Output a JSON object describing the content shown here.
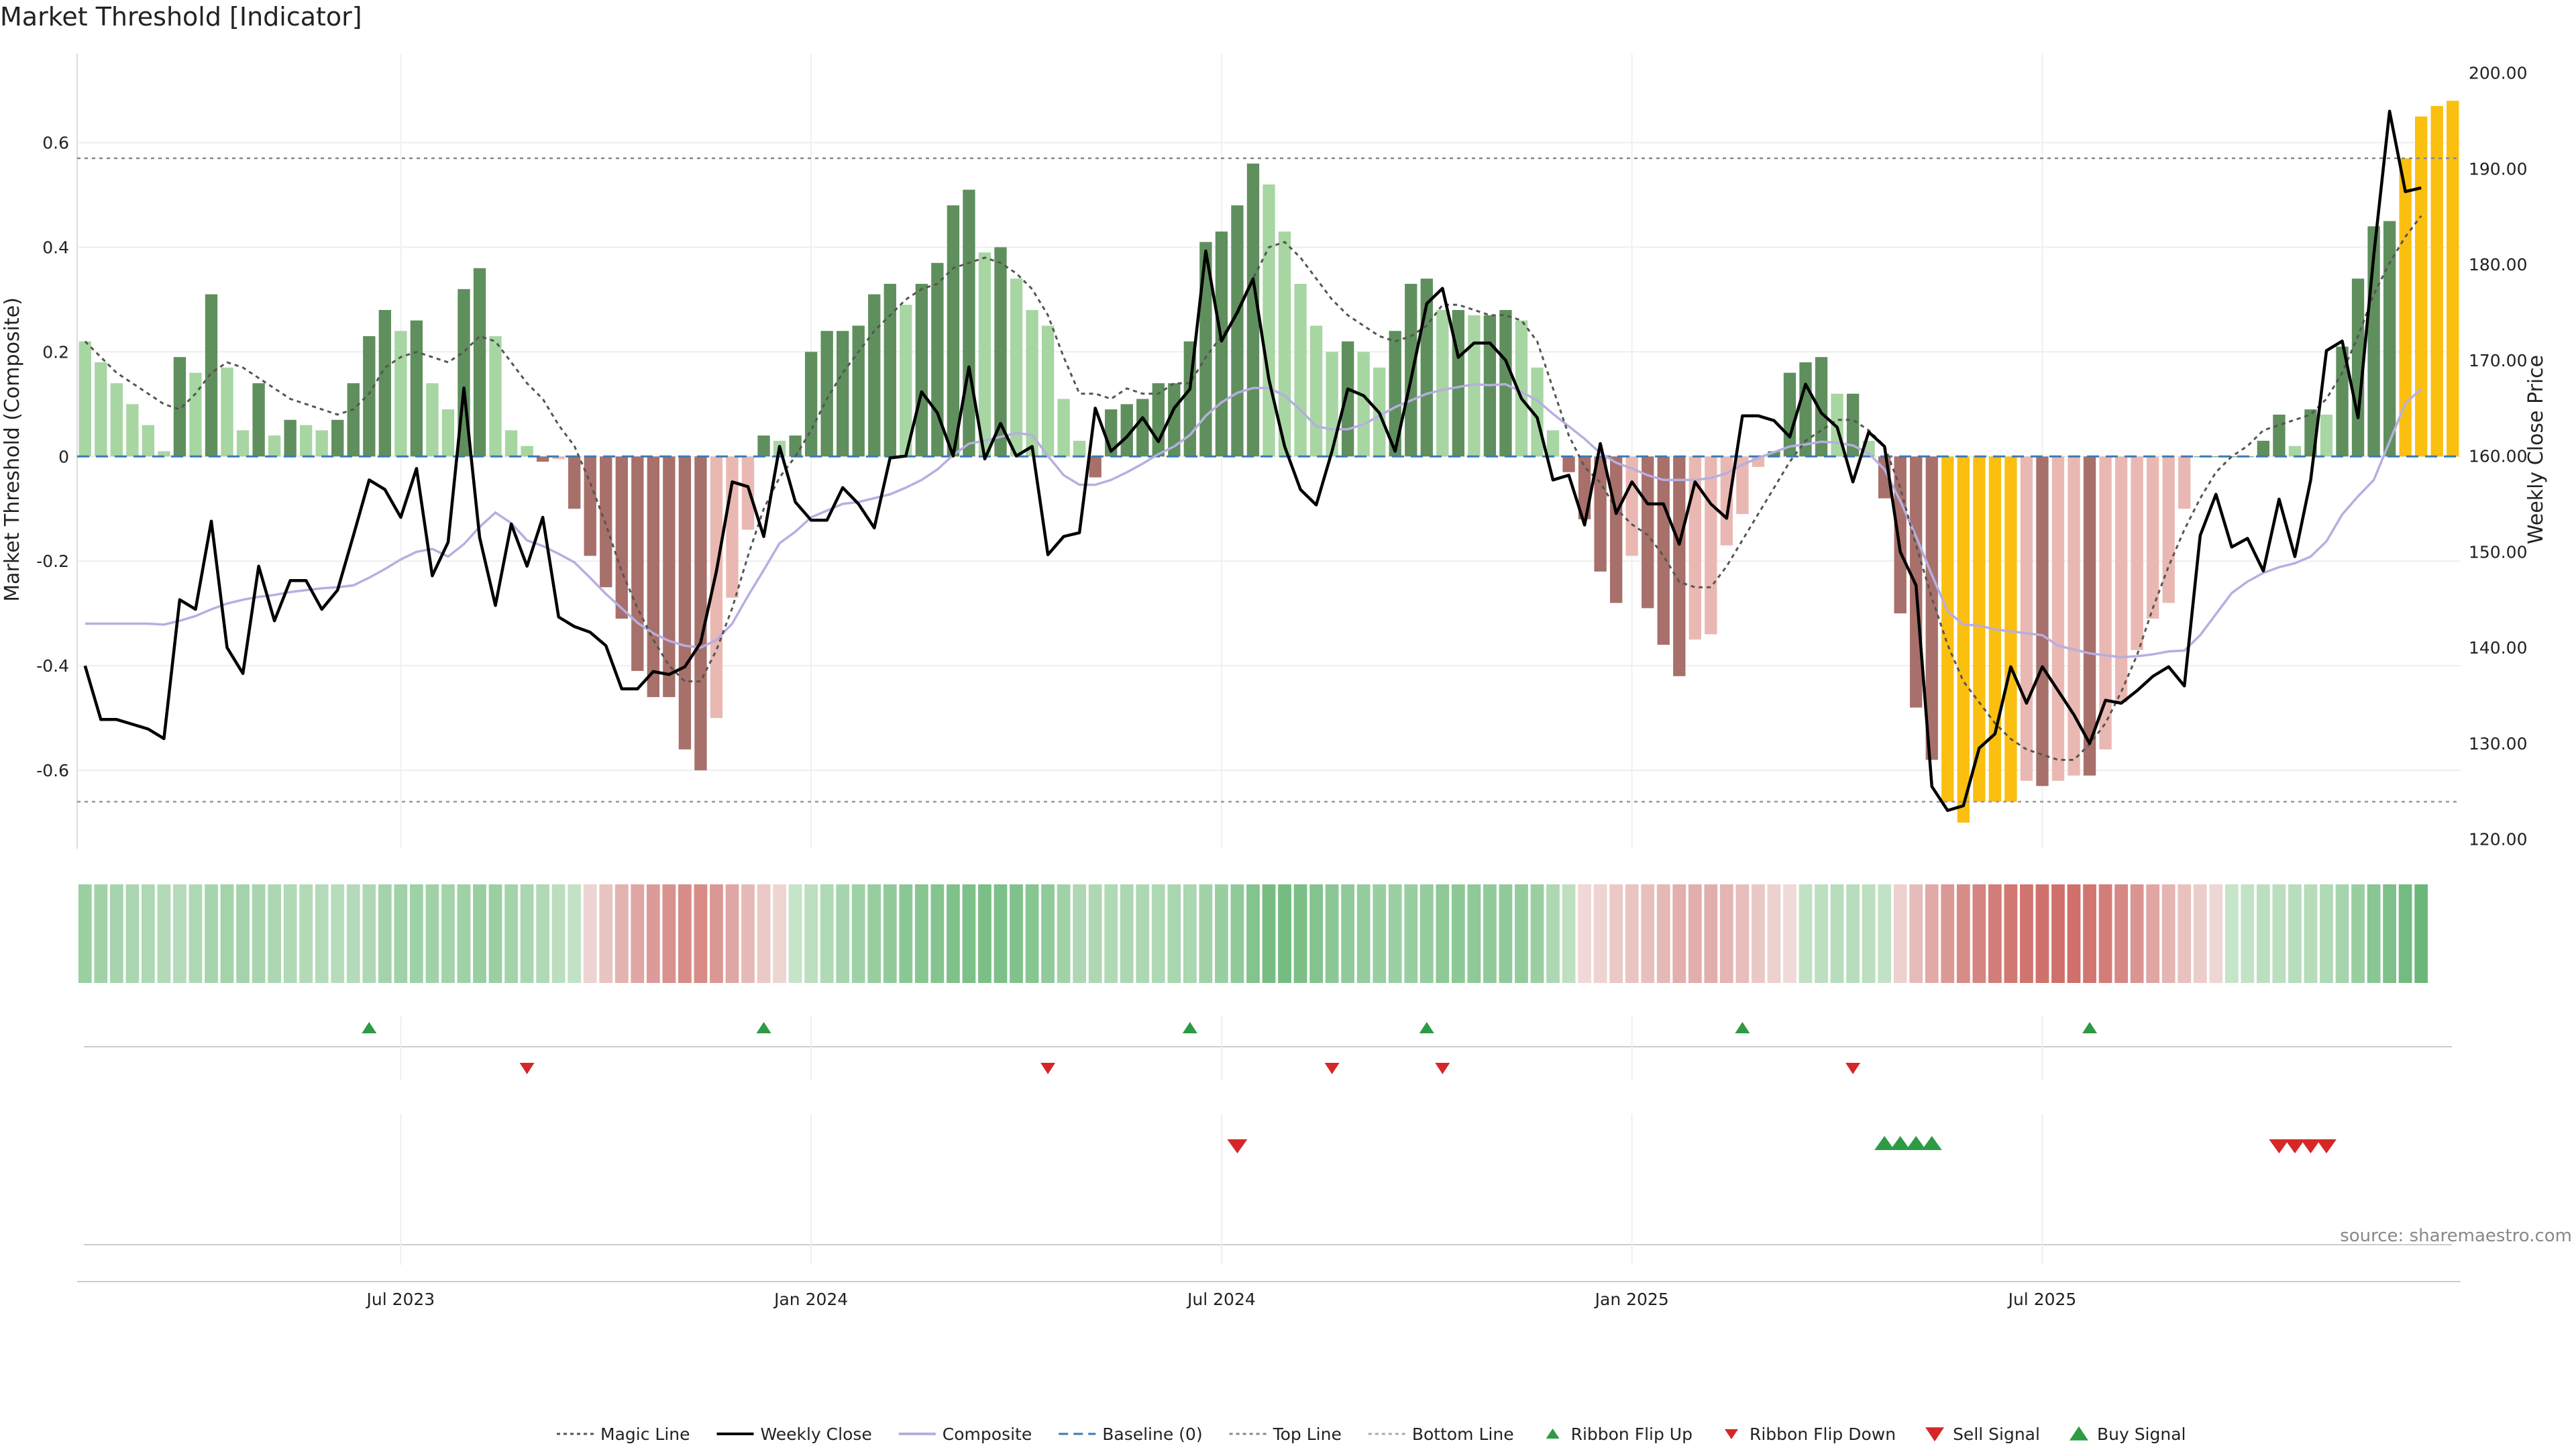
{
  "chart_data": {
    "type": "bar",
    "title": "Market Threshold [Indicator]",
    "ylabel_left": "Market Threshold (Composite)",
    "ylabel_right": "Weekly Close Price",
    "source": "source: sharemaestro.com",
    "ylim_left": [
      -0.75,
      0.77
    ],
    "ylim_right": [
      119,
      202
    ],
    "left_ticks": [
      "-0.6",
      "-0.4",
      "-0.2",
      "0",
      "0.2",
      "0.4",
      "0.6"
    ],
    "left_tick_values": [
      -0.6,
      -0.4,
      -0.2,
      0,
      0.2,
      0.4,
      0.6
    ],
    "right_ticks": [
      "120.00",
      "130.00",
      "140.00",
      "150.00",
      "160.00",
      "170.00",
      "180.00",
      "190.00",
      "200.00"
    ],
    "right_tick_values": [
      120,
      130,
      140,
      150,
      160,
      170,
      180,
      190,
      200
    ],
    "x_ticks": [
      "Jul 2023",
      "Jan 2024",
      "Jul 2024",
      "Jan 2025",
      "Jul 2025"
    ],
    "x_tick_weeks": [
      20,
      46,
      72,
      98,
      124
    ],
    "top_line": 0.57,
    "bottom_line": -0.66,
    "composite": [
      0.22,
      0.18,
      0.14,
      0.1,
      0.06,
      0.01,
      0.19,
      0.16,
      0.31,
      0.17,
      0.05,
      0.14,
      0.04,
      0.07,
      0.06,
      0.05,
      0.07,
      0.14,
      0.23,
      0.28,
      0.24,
      0.26,
      0.14,
      0.09,
      0.32,
      0.36,
      0.23,
      0.05,
      0.02,
      -0.01,
      -0.005,
      -0.1,
      -0.19,
      -0.25,
      -0.31,
      -0.41,
      -0.46,
      -0.46,
      -0.56,
      -0.6,
      -0.5,
      -0.27,
      -0.14,
      0.04,
      0.03,
      0.04,
      0.2,
      0.24,
      0.24,
      0.25,
      0.31,
      0.33,
      0.29,
      0.33,
      0.37,
      0.48,
      0.51,
      0.39,
      0.4,
      0.34,
      0.28,
      0.25,
      0.11,
      0.03,
      -0.04,
      0.09,
      0.1,
      0.11,
      0.14,
      0.14,
      0.22,
      0.41,
      0.43,
      0.48,
      0.56,
      0.52,
      0.43,
      0.33,
      0.25,
      0.2,
      0.22,
      0.2,
      0.17,
      0.24,
      0.33,
      0.34,
      0.28,
      0.28,
      0.27,
      0.27,
      0.28,
      0.26,
      0.17,
      0.05,
      -0.03,
      -0.12,
      -0.22,
      -0.28,
      -0.19,
      -0.29,
      -0.36,
      -0.42,
      -0.35,
      -0.34,
      -0.17,
      -0.11,
      -0.02,
      0.01,
      0.16,
      0.18,
      0.19,
      0.12,
      0.12,
      0.03,
      -0.08,
      -0.3,
      -0.48,
      -0.58,
      -0.66,
      -0.7,
      -0.66,
      -0.66,
      -0.66,
      -0.62,
      -0.63,
      -0.62,
      -0.61,
      -0.61,
      -0.56,
      -0.47,
      -0.37,
      -0.31,
      -0.28,
      -0.1,
      0.0,
      0.0,
      0.0,
      0.0,
      0.03,
      0.08,
      0.02,
      0.09,
      0.08,
      0.21,
      0.34,
      0.44,
      0.45,
      0.57,
      0.65,
      0.67,
      0.68
    ],
    "magic_line": [
      0.22,
      0.19,
      0.16,
      0.14,
      0.12,
      0.1,
      0.09,
      0.12,
      0.16,
      0.18,
      0.17,
      0.15,
      0.13,
      0.11,
      0.1,
      0.09,
      0.08,
      0.09,
      0.12,
      0.17,
      0.19,
      0.2,
      0.19,
      0.18,
      0.2,
      0.23,
      0.22,
      0.18,
      0.14,
      0.11,
      0.06,
      0.02,
      -0.05,
      -0.13,
      -0.22,
      -0.29,
      -0.35,
      -0.4,
      -0.43,
      -0.43,
      -0.37,
      -0.29,
      -0.19,
      -0.1,
      -0.04,
      0.0,
      0.05,
      0.11,
      0.16,
      0.2,
      0.24,
      0.27,
      0.3,
      0.32,
      0.33,
      0.36,
      0.37,
      0.38,
      0.37,
      0.35,
      0.32,
      0.27,
      0.19,
      0.12,
      0.12,
      0.11,
      0.13,
      0.12,
      0.12,
      0.14,
      0.14,
      0.19,
      0.23,
      0.27,
      0.34,
      0.4,
      0.41,
      0.38,
      0.34,
      0.3,
      0.27,
      0.25,
      0.23,
      0.22,
      0.23,
      0.25,
      0.29,
      0.29,
      0.28,
      0.27,
      0.27,
      0.26,
      0.22,
      0.13,
      0.04,
      -0.02,
      -0.05,
      -0.1,
      -0.13,
      -0.15,
      -0.19,
      -0.24,
      -0.25,
      -0.25,
      -0.21,
      -0.16,
      -0.11,
      -0.06,
      -0.01,
      0.03,
      0.05,
      0.07,
      0.07,
      0.05,
      0.02,
      -0.06,
      -0.17,
      -0.27,
      -0.36,
      -0.43,
      -0.47,
      -0.51,
      -0.54,
      -0.56,
      -0.57,
      -0.58,
      -0.58,
      -0.55,
      -0.51,
      -0.45,
      -0.38,
      -0.29,
      -0.21,
      -0.14,
      -0.08,
      -0.03,
      0.0,
      0.02,
      0.05,
      0.06,
      0.07,
      0.08,
      0.11,
      0.16,
      0.23,
      0.31,
      0.37,
      0.42,
      0.46
    ],
    "weekly_close": [
      138.1,
      132.5,
      132.5,
      132.0,
      131.5,
      130.5,
      145.0,
      144.0,
      153.2,
      140.0,
      137.3,
      148.5,
      142.8,
      147.0,
      147.0,
      144.0,
      146.0,
      151.7,
      157.5,
      156.5,
      153.6,
      158.7,
      147.5,
      151.0,
      167.1,
      151.5,
      144.4,
      152.9,
      148.5,
      153.6,
      143.2,
      142.2,
      141.6,
      140.2,
      135.7,
      135.7,
      137.5,
      137.2,
      138.0,
      140.5,
      148.0,
      157.3,
      156.8,
      151.6,
      161.0,
      155.2,
      153.3,
      153.3,
      156.7,
      155.0,
      152.5,
      159.8,
      160.0,
      166.7,
      164.5,
      160.0,
      169.3,
      159.7,
      163.4,
      160.0,
      161.0,
      149.7,
      151.6,
      152.0,
      165.0,
      160.5,
      162.0,
      164.0,
      161.5,
      165.0,
      167.0,
      181.4,
      172.0,
      175.0,
      178.5,
      168.0,
      161.0,
      156.5,
      154.9,
      160.5,
      167.0,
      166.3,
      164.5,
      160.5,
      168.0,
      175.9,
      177.5,
      170.3,
      171.8,
      171.8,
      170.0,
      166.0,
      164.0,
      157.5,
      158.0,
      152.8,
      161.3,
      154.0,
      157.3,
      155.0,
      155.0,
      150.8,
      157.3,
      155.0,
      153.5,
      164.2,
      164.2,
      163.7,
      162.0,
      167.5,
      164.5,
      163.0,
      157.3,
      162.5,
      161.0,
      150.0,
      146.5,
      125.5,
      123.0,
      123.5,
      129.5,
      131.0,
      138.0,
      134.2,
      138.0,
      135.5,
      133.0,
      130.0,
      134.5,
      134.2,
      135.5,
      137.0,
      138.0,
      136.0,
      151.7,
      156.0,
      150.5,
      151.4,
      148.0,
      155.5,
      149.5,
      157.5,
      171.0,
      172.0,
      164.0,
      181.0,
      196.0,
      187.6,
      188.0
    ],
    "composite_line": [
      142.5,
      142.5,
      142.5,
      142.5,
      142.5,
      142.4,
      142.8,
      143.3,
      144.0,
      144.6,
      145.0,
      145.3,
      145.5,
      145.8,
      146.0,
      146.2,
      146.3,
      146.5,
      147.3,
      148.2,
      149.2,
      150.0,
      150.3,
      149.5,
      150.8,
      152.6,
      154.1,
      153.0,
      151.2,
      150.6,
      149.8,
      148.9,
      147.3,
      145.6,
      144.1,
      142.6,
      141.5,
      140.7,
      140.2,
      140.0,
      140.8,
      142.5,
      145.4,
      148.1,
      150.9,
      152.1,
      153.6,
      154.3,
      155.0,
      155.2,
      155.6,
      156.0,
      156.7,
      157.5,
      158.6,
      160.1,
      161.3,
      161.6,
      162.0,
      162.4,
      162.2,
      160.0,
      158.0,
      157.0,
      157.0,
      157.5,
      158.3,
      159.2,
      160.2,
      161.0,
      162.2,
      164.2,
      165.6,
      166.6,
      167.1,
      167.1,
      166.3,
      164.8,
      163.1,
      162.8,
      162.8,
      163.3,
      164.2,
      165.1,
      165.8,
      166.5,
      166.9,
      167.2,
      167.5,
      167.4,
      167.5,
      166.7,
      165.8,
      164.4,
      163.1,
      161.8,
      160.3,
      159.3,
      158.7,
      158.0,
      157.5,
      157.5,
      157.5,
      157.7,
      158.2,
      159.1,
      159.8,
      160.4,
      161.0,
      161.2,
      161.5,
      161.4,
      161.1,
      160.3,
      158.6,
      155.3,
      151.6,
      147.6,
      143.8,
      142.4,
      142.3,
      141.9,
      141.7,
      141.5,
      141.3,
      140.2,
      139.8,
      139.4,
      139.2,
      139.0,
      139.1,
      139.3,
      139.6,
      139.7,
      141.3,
      143.5,
      145.7,
      146.9,
      147.8,
      148.4,
      148.8,
      149.5,
      151.1,
      153.9,
      155.8,
      157.5,
      161.5,
      165.5,
      167.0
    ],
    "ribbon_flip_up_weeks": [
      18,
      43,
      70,
      85,
      105,
      127
    ],
    "ribbon_flip_down_weeks": [
      28,
      61,
      79,
      86,
      112
    ],
    "sell_signal_weeks": [
      73,
      139,
      140,
      141,
      142
    ],
    "buy_signal_weeks": [
      114,
      115,
      116,
      117
    ],
    "legend": [
      {
        "label": "Magic Line",
        "kind": "dotted-line",
        "color": "#555555"
      },
      {
        "label": "Weekly Close",
        "kind": "line",
        "color": "#000000"
      },
      {
        "label": "Composite",
        "kind": "line",
        "color": "#b7aee0"
      },
      {
        "label": "Baseline (0)",
        "kind": "dashed-line",
        "color": "#3a7ab8"
      },
      {
        "label": "Top Line",
        "kind": "dotted-line",
        "color": "#888888"
      },
      {
        "label": "Bottom Line",
        "kind": "dotted-line",
        "color": "#aaaaaa"
      },
      {
        "label": "Ribbon Flip Up",
        "kind": "triangle-up-small",
        "color": "#2e9a44"
      },
      {
        "label": "Ribbon Flip Down",
        "kind": "triangle-down-small",
        "color": "#d62728"
      },
      {
        "label": "Sell Signal",
        "kind": "triangle-down",
        "color": "#d62728"
      },
      {
        "label": "Buy Signal",
        "kind": "triangle-up",
        "color": "#2e9a44"
      }
    ],
    "colors": {
      "bar_strong_up": "#5f8f5d",
      "bar_weak_up": "#a7d6a2",
      "bar_strong_down": "#a8706a",
      "bar_weak_down": "#eab8b2",
      "bar_extreme": "#fbbf10",
      "magic": "#555555",
      "close": "#000000",
      "composite_line": "#b7aee0",
      "baseline": "#3a7ab8",
      "flip_up": "#2e9a44",
      "flip_down": "#d62728"
    }
  }
}
